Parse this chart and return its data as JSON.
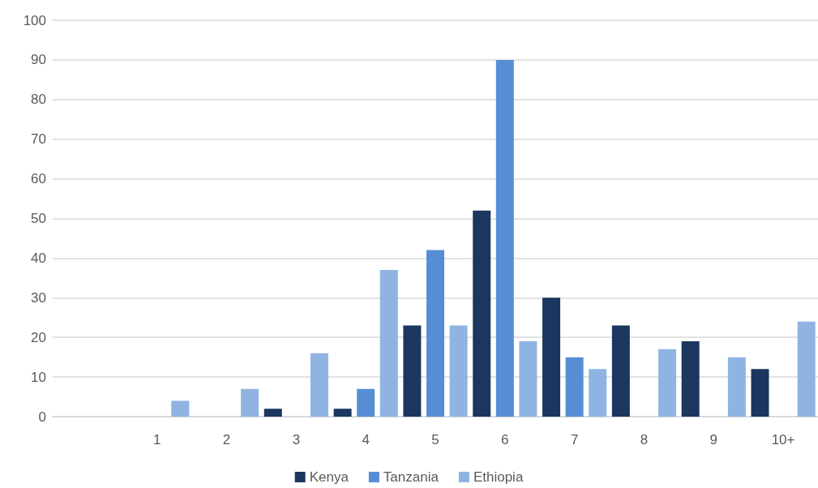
{
  "chart_data": {
    "type": "bar",
    "categories": [
      null,
      "1",
      "2",
      "3",
      "4",
      "5",
      "6",
      "7",
      "8",
      "9",
      "10+"
    ],
    "series": [
      {
        "name": "Kenya",
        "color": "#1b3760",
        "values": [
          null,
          null,
          null,
          2,
          2,
          23,
          52,
          30,
          23,
          19,
          12
        ]
      },
      {
        "name": "Tanzania",
        "color": "#558ed5",
        "values": [
          null,
          null,
          null,
          null,
          7,
          42,
          90,
          15,
          null,
          null,
          null
        ]
      },
      {
        "name": "Ethiopia",
        "color": "#8fb4e2",
        "values": [
          null,
          4,
          7,
          16,
          37,
          23,
          19,
          12,
          17,
          15,
          24
        ]
      }
    ],
    "ylim": [
      0,
      100
    ],
    "yticks": [
      0,
      10,
      20,
      30,
      40,
      50,
      60,
      70,
      80,
      90,
      100
    ],
    "grid": "y",
    "legend": "bottom"
  }
}
